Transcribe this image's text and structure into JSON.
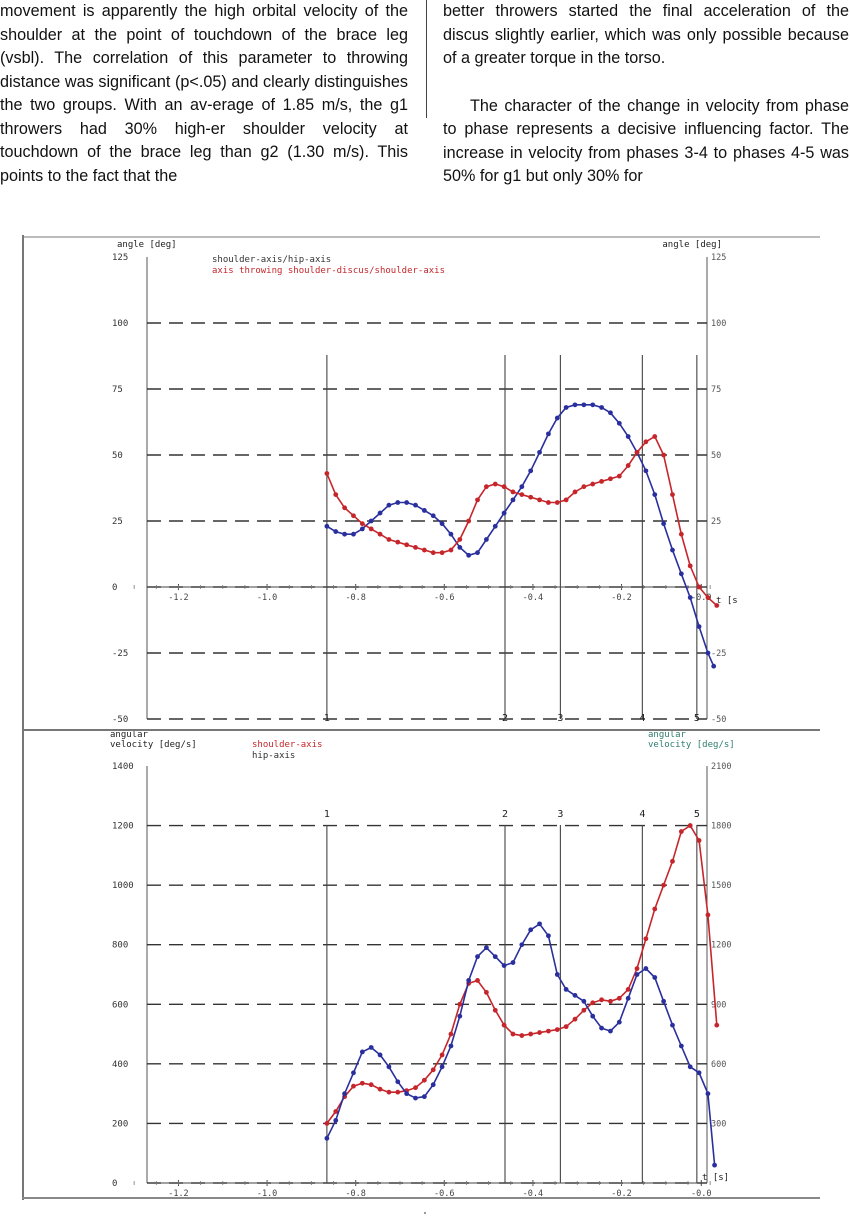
{
  "text": {
    "left_column": "movement is apparently the high orbital velocity of the shoulder at the point of touchdown of the brace leg (vsbl). The correlation of this parameter to throwing distance was significant (p<.05) and clearly distinguishes the two groups. With an av-erage of 1.85 m/s, the g1 throwers had 30% high-er shoulder velocity at touchdown of the brace leg than g2 (1.30 m/s). This points to the fact that the",
    "right_column_p1": "better throwers started the final acceleration of the discus slightly earlier, which was only possible because of a greater torque in the torso.",
    "right_column_p2": "The character of the change in velocity from phase to phase represents a decisive influencing factor. The increase in velocity from phases 3-4 to phases 4-5 was 50% for g1 but only 30% for"
  },
  "chart_data": [
    {
      "type": "line",
      "ylabel_left": "angle [deg]",
      "ylabel_right": "angle [deg]",
      "xlabel": "t [s",
      "xlim": [
        -1.35,
        0.02
      ],
      "ylim": [
        -50,
        125
      ],
      "x_ticks": [
        "-1.2",
        "-1.0",
        "-0.8",
        "-0.6",
        "-0.4",
        "-0.2",
        "-0.0"
      ],
      "x_tick_values": [
        -1.2,
        -1.0,
        -0.8,
        -0.6,
        -0.4,
        -0.2,
        -0.02
      ],
      "y_ticks": [
        "125",
        "100",
        "75",
        "50",
        "25",
        "0",
        "-25",
        "-50"
      ],
      "y_tick_values": [
        125,
        100,
        75,
        50,
        25,
        0,
        -25,
        -50
      ],
      "right_y_ticks": [
        "125",
        "100",
        "75",
        "50",
        "25",
        "",
        "-25",
        "-50"
      ],
      "grid": "dashed horizontal",
      "phase_lines": [
        {
          "label": "1",
          "x": -0.865
        },
        {
          "label": "2",
          "x": -0.463
        },
        {
          "label": "3",
          "x": -0.338
        },
        {
          "label": "4",
          "x": -0.153
        },
        {
          "label": "5",
          "x": -0.03
        }
      ],
      "series": [
        {
          "name": "shoulder-axis/hip-axis",
          "color": "#2a2f9e",
          "x": [
            -0.865,
            -0.845,
            -0.825,
            -0.805,
            -0.785,
            -0.765,
            -0.745,
            -0.725,
            -0.705,
            -0.685,
            -0.665,
            -0.645,
            -0.625,
            -0.605,
            -0.585,
            -0.565,
            -0.545,
            -0.525,
            -0.505,
            -0.485,
            -0.465,
            -0.445,
            -0.425,
            -0.405,
            -0.385,
            -0.365,
            -0.345,
            -0.325,
            -0.305,
            -0.285,
            -0.265,
            -0.245,
            -0.225,
            -0.205,
            -0.185,
            -0.165,
            -0.145,
            -0.125,
            -0.105,
            -0.085,
            -0.065,
            -0.045,
            -0.025,
            -0.005,
            0.008
          ],
          "y": [
            23,
            21,
            20,
            20,
            22,
            25,
            28,
            31,
            32,
            32,
            31,
            29,
            27,
            24,
            20,
            15,
            12,
            13,
            18,
            23,
            28,
            33,
            38,
            44,
            51,
            58,
            64,
            68,
            69,
            69,
            69,
            68,
            66,
            62,
            57,
            51,
            44,
            35,
            24,
            14,
            5,
            -4,
            -15,
            -25,
            -30
          ]
        },
        {
          "name": "axis throwing shoulder-discus/shoulder-axis",
          "color": "#c6262b",
          "x": [
            -0.865,
            -0.845,
            -0.825,
            -0.805,
            -0.785,
            -0.765,
            -0.745,
            -0.725,
            -0.705,
            -0.685,
            -0.665,
            -0.645,
            -0.625,
            -0.605,
            -0.585,
            -0.565,
            -0.545,
            -0.525,
            -0.505,
            -0.485,
            -0.465,
            -0.445,
            -0.425,
            -0.405,
            -0.385,
            -0.365,
            -0.345,
            -0.325,
            -0.305,
            -0.285,
            -0.265,
            -0.245,
            -0.225,
            -0.205,
            -0.185,
            -0.165,
            -0.145,
            -0.125,
            -0.105,
            -0.085,
            -0.065,
            -0.045,
            -0.025,
            -0.005,
            0.015
          ],
          "y": [
            43,
            35,
            30,
            27,
            24,
            22,
            20,
            18,
            17,
            16,
            15,
            14,
            13,
            13,
            14,
            18,
            25,
            33,
            38,
            39,
            38,
            36,
            35,
            34,
            33,
            32,
            32,
            33,
            36,
            38,
            39,
            40,
            41,
            42,
            46,
            51,
            55,
            57,
            50,
            35,
            20,
            8,
            0,
            -4,
            -7
          ]
        }
      ]
    },
    {
      "type": "line",
      "ylabel_left": "angular velocity [deg/s]",
      "ylabel_right": "angular velocity [deg/s]",
      "xlabel": "t [s]",
      "xlim": [
        -1.35,
        0.02
      ],
      "ylim": [
        0,
        1400
      ],
      "right_ylim": [
        0,
        2100
      ],
      "x_ticks": [
        "-1.2",
        "-1.0",
        "-0.8",
        "-0.6",
        "-0.4",
        "-0.2",
        "-0.0"
      ],
      "x_tick_values": [
        -1.2,
        -1.0,
        -0.8,
        -0.6,
        -0.4,
        -0.2,
        -0.02
      ],
      "y_ticks": [
        "1400",
        "1200",
        "1000",
        "800",
        "600",
        "400",
        "200",
        "0"
      ],
      "y_tick_values": [
        1400,
        1200,
        1000,
        800,
        600,
        400,
        200,
        0
      ],
      "right_y_ticks": [
        "2100",
        "1800",
        "1500",
        "1200",
        "900",
        "600",
        "300"
      ],
      "right_y_tick_values": [
        2100,
        1800,
        1500,
        1200,
        900,
        600,
        300
      ],
      "grid": "dashed horizontal",
      "phase_lines": [
        {
          "label": "1",
          "x": -0.865
        },
        {
          "label": "2",
          "x": -0.463
        },
        {
          "label": "3",
          "x": -0.338
        },
        {
          "label": "4",
          "x": -0.153
        },
        {
          "label": "5",
          "x": -0.03
        }
      ],
      "series": [
        {
          "name": "shoulder-axis",
          "color": "#c6262b",
          "x": [
            -0.865,
            -0.845,
            -0.825,
            -0.805,
            -0.785,
            -0.765,
            -0.745,
            -0.725,
            -0.705,
            -0.685,
            -0.665,
            -0.645,
            -0.625,
            -0.605,
            -0.585,
            -0.565,
            -0.545,
            -0.525,
            -0.505,
            -0.485,
            -0.465,
            -0.445,
            -0.425,
            -0.405,
            -0.385,
            -0.365,
            -0.345,
            -0.325,
            -0.305,
            -0.285,
            -0.265,
            -0.245,
            -0.225,
            -0.205,
            -0.185,
            -0.165,
            -0.145,
            -0.125,
            -0.105,
            -0.085,
            -0.065,
            -0.045,
            -0.025,
            -0.005,
            0.015
          ],
          "y": [
            200,
            240,
            290,
            325,
            335,
            330,
            315,
            305,
            305,
            310,
            320,
            345,
            380,
            430,
            500,
            600,
            670,
            680,
            640,
            580,
            530,
            500,
            495,
            500,
            505,
            510,
            515,
            525,
            550,
            580,
            605,
            615,
            610,
            620,
            650,
            720,
            820,
            920,
            1000,
            1080,
            1180,
            1200,
            1150,
            900,
            530
          ]
        },
        {
          "name": "hip-axis",
          "color": "#2a2f9e",
          "x": [
            -0.865,
            -0.845,
            -0.825,
            -0.805,
            -0.785,
            -0.765,
            -0.745,
            -0.725,
            -0.705,
            -0.685,
            -0.665,
            -0.645,
            -0.625,
            -0.605,
            -0.585,
            -0.565,
            -0.545,
            -0.525,
            -0.505,
            -0.485,
            -0.465,
            -0.445,
            -0.425,
            -0.405,
            -0.385,
            -0.365,
            -0.345,
            -0.325,
            -0.305,
            -0.285,
            -0.265,
            -0.245,
            -0.225,
            -0.205,
            -0.185,
            -0.165,
            -0.145,
            -0.125,
            -0.105,
            -0.085,
            -0.065,
            -0.045,
            -0.025,
            -0.005,
            0.01
          ],
          "y": [
            150,
            210,
            300,
            370,
            440,
            455,
            430,
            390,
            340,
            300,
            285,
            290,
            330,
            390,
            460,
            560,
            680,
            760,
            790,
            760,
            730,
            740,
            800,
            850,
            870,
            830,
            700,
            650,
            630,
            610,
            560,
            520,
            510,
            540,
            620,
            700,
            720,
            690,
            610,
            530,
            460,
            390,
            370,
            300,
            60
          ]
        }
      ]
    }
  ],
  "legend_top": [
    "shoulder-axis/hip-axis",
    "axis throwing shoulder-discus/shoulder-axis"
  ],
  "legend_bottom": [
    "shoulder-axis",
    "hip-axis"
  ]
}
